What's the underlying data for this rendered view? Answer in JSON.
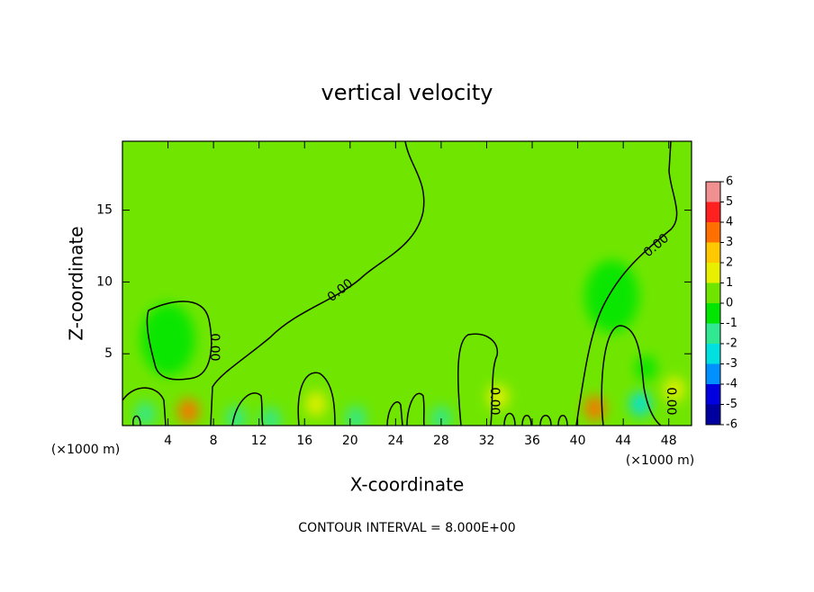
{
  "chart_data": {
    "type": "contour",
    "title": "vertical velocity",
    "x_label": "X-coordinate",
    "y_label": "Z-coordinate",
    "x_unit_left": "(×1000 m)",
    "x_unit_right": "(×1000 m)",
    "footnote": "CONTOUR INTERVAL = 8.000E+00",
    "xlim": [
      0,
      50
    ],
    "ylim": [
      0,
      19.8
    ],
    "xticks": [
      4,
      8,
      12,
      16,
      20,
      24,
      28,
      32,
      36,
      40,
      44,
      48
    ],
    "yticks": [
      5,
      10,
      15
    ],
    "contour_labels": [
      "0.00",
      "0.00",
      "0.00",
      "0.00",
      "0.00"
    ],
    "colorbar": {
      "ticks": [
        6,
        5,
        4,
        3,
        2,
        1,
        0,
        -1,
        -2,
        -3,
        -4,
        -5,
        -6
      ],
      "colors": [
        "#f09090",
        "#ff2020",
        "#ff7000",
        "#ffc800",
        "#e8f000",
        "#70e600",
        "#00e600",
        "#30e890",
        "#00e0e0",
        "#0090ff",
        "#0000e0",
        "#0000a0",
        "#7000b0"
      ]
    },
    "features": {
      "x": [
        5.8,
        41.5,
        45.5,
        17,
        33,
        2,
        20.5,
        28,
        10,
        4,
        46,
        43,
        48.5,
        13
      ],
      "z": [
        1.0,
        1.2,
        1.5,
        1.5,
        2.0,
        0.8,
        0.5,
        0.5,
        0.5,
        6,
        4,
        9,
        2.5,
        0.4
      ],
      "values": [
        3.5,
        3,
        -3,
        1.5,
        1.5,
        -1.5,
        -2,
        -2,
        -2,
        -0.8,
        -1,
        -0.7,
        1.5,
        -2
      ]
    }
  }
}
